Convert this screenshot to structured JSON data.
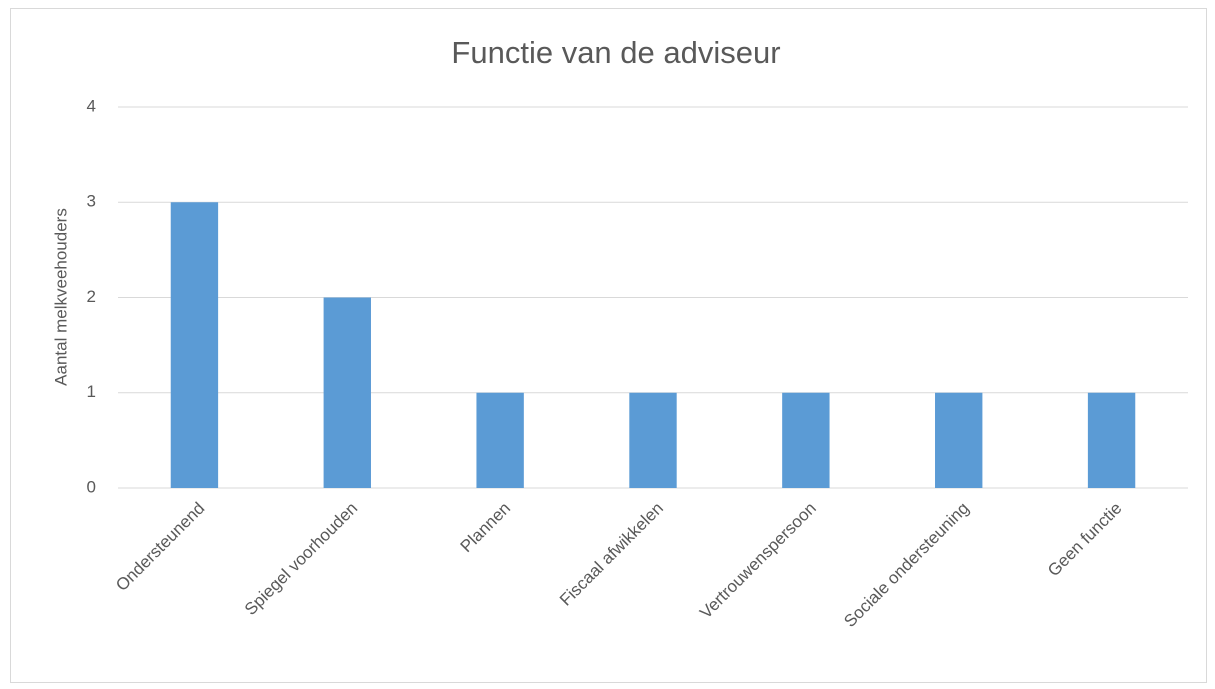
{
  "chart_data": {
    "type": "bar",
    "title": "Functie van de adviseur",
    "y_label": "Aantal melkveehouders",
    "categories": [
      "Ondersteunend",
      "Spiegel voorhouden",
      "Plannen",
      "Fiscaal afwikkelen",
      "Vertrouwenspersoon",
      "Sociale ondersteuning",
      "Geen functie"
    ],
    "values": [
      3,
      2,
      1,
      1,
      1,
      1,
      1
    ],
    "color": "#5b9bd5",
    "ylim": [
      0,
      4
    ],
    "yticks": [
      0,
      1,
      2,
      3,
      4
    ],
    "grid": true
  }
}
